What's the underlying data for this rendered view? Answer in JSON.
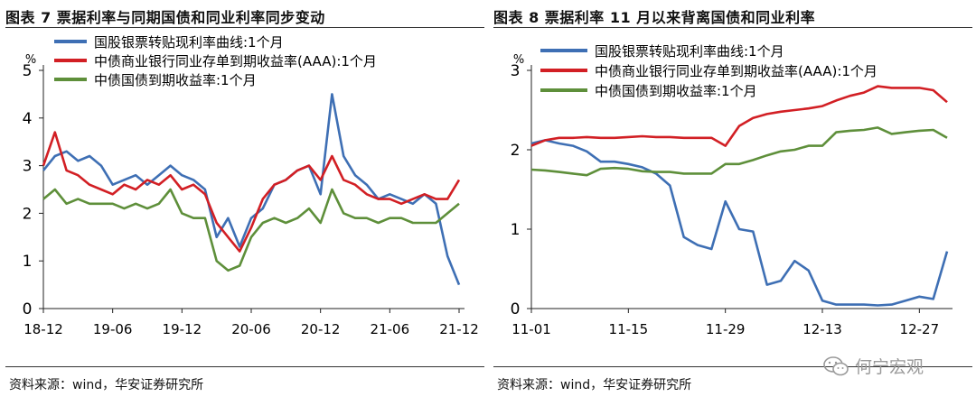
{
  "left": {
    "title": "图表 7  票据利率与同期国债和同业利率同步变动",
    "source": "资料来源：wind，华安证券研究所"
  },
  "right": {
    "title": "图表 8  票据利率 11 月以来背离国债和同业利率",
    "source": "资料来源：wind，华安证券研究所"
  },
  "watermark": {
    "text": "何宁宏观",
    "icon": "wechat-icon"
  },
  "chart_data": [
    {
      "type": "line",
      "title": "图表 7  票据利率与同期国债和同业利率同步变动",
      "ylabel": "%",
      "ylim": [
        0,
        5
      ],
      "yticks": [
        0,
        1,
        2,
        3,
        4,
        5
      ],
      "xticks": [
        "18-12",
        "19-06",
        "19-12",
        "20-06",
        "20-12",
        "21-06",
        "21-12"
      ],
      "x": [
        "18-12",
        "19-01",
        "19-02",
        "19-03",
        "19-04",
        "19-05",
        "19-06",
        "19-07",
        "19-08",
        "19-09",
        "19-10",
        "19-11",
        "19-12",
        "20-01",
        "20-02",
        "20-03",
        "20-04",
        "20-05",
        "20-06",
        "20-07",
        "20-08",
        "20-09",
        "20-10",
        "20-11",
        "20-12",
        "21-01",
        "21-02",
        "21-03",
        "21-04",
        "21-05",
        "21-06",
        "21-07",
        "21-08",
        "21-09",
        "21-10",
        "21-11",
        "21-12"
      ],
      "series": [
        {
          "name": "国股银票转贴现利率曲线:1个月",
          "color": "#3E6FB4",
          "values": [
            2.9,
            3.2,
            3.3,
            3.1,
            3.2,
            3.0,
            2.6,
            2.7,
            2.8,
            2.6,
            2.8,
            3.0,
            2.8,
            2.7,
            2.5,
            1.5,
            1.9,
            1.3,
            1.9,
            2.1,
            2.6,
            2.7,
            2.9,
            3.0,
            2.4,
            4.5,
            3.2,
            2.8,
            2.6,
            2.3,
            2.4,
            2.3,
            2.2,
            2.4,
            2.2,
            1.1,
            0.5
          ]
        },
        {
          "name": "中债商业银行同业存单到期收益率(AAA):1个月",
          "color": "#D21F24",
          "values": [
            3.0,
            3.7,
            2.9,
            2.8,
            2.6,
            2.5,
            2.4,
            2.6,
            2.5,
            2.7,
            2.6,
            2.8,
            2.5,
            2.6,
            2.4,
            1.8,
            1.5,
            1.2,
            1.7,
            2.3,
            2.6,
            2.7,
            2.9,
            3.0,
            2.7,
            3.2,
            2.7,
            2.6,
            2.4,
            2.3,
            2.3,
            2.2,
            2.3,
            2.4,
            2.3,
            2.3,
            2.7
          ]
        },
        {
          "name": "中债国债到期收益率:1个月",
          "color": "#5E8F3A",
          "values": [
            2.3,
            2.5,
            2.2,
            2.3,
            2.2,
            2.2,
            2.2,
            2.1,
            2.2,
            2.1,
            2.2,
            2.5,
            2.0,
            1.9,
            1.9,
            1.0,
            0.8,
            0.9,
            1.5,
            1.8,
            1.9,
            1.8,
            1.9,
            2.1,
            1.8,
            2.5,
            2.0,
            1.9,
            1.9,
            1.8,
            1.9,
            1.9,
            1.8,
            1.8,
            1.8,
            2.0,
            2.2
          ]
        }
      ]
    },
    {
      "type": "line",
      "title": "图表 8  票据利率 11 月以来背离国债和同业利率",
      "ylabel": "%",
      "ylim": [
        0,
        3
      ],
      "yticks": [
        0,
        1,
        2,
        3
      ],
      "xticks": [
        "11-01",
        "11-15",
        "11-29",
        "12-13",
        "12-27"
      ],
      "x": [
        "11-01",
        "11-03",
        "11-05",
        "11-07",
        "11-09",
        "11-11",
        "11-13",
        "11-15",
        "11-17",
        "11-19",
        "11-21",
        "11-23",
        "11-25",
        "11-27",
        "11-29",
        "12-01",
        "12-03",
        "12-05",
        "12-07",
        "12-09",
        "12-11",
        "12-13",
        "12-15",
        "12-17",
        "12-19",
        "12-21",
        "12-23",
        "12-25",
        "12-27",
        "12-29",
        "12-31"
      ],
      "series": [
        {
          "name": "国股银票转贴现利率曲线:1个月",
          "color": "#3E6FB4",
          "values": [
            2.08,
            2.12,
            2.08,
            2.05,
            1.98,
            1.85,
            1.85,
            1.82,
            1.78,
            1.7,
            1.55,
            0.9,
            0.8,
            0.75,
            1.35,
            1.0,
            0.97,
            0.3,
            0.35,
            0.6,
            0.48,
            0.1,
            0.05,
            0.05,
            0.05,
            0.04,
            0.05,
            0.1,
            0.15,
            0.12,
            0.72
          ]
        },
        {
          "name": "中债商业银行同业存单到期收益率(AAA):1个月",
          "color": "#D21F24",
          "values": [
            2.05,
            2.12,
            2.15,
            2.15,
            2.16,
            2.15,
            2.15,
            2.16,
            2.17,
            2.16,
            2.16,
            2.15,
            2.15,
            2.15,
            2.05,
            2.3,
            2.4,
            2.45,
            2.48,
            2.5,
            2.52,
            2.55,
            2.62,
            2.68,
            2.72,
            2.8,
            2.78,
            2.78,
            2.78,
            2.75,
            2.6
          ]
        },
        {
          "name": "中债国债到期收益率:1个月",
          "color": "#5E8F3A",
          "values": [
            1.75,
            1.74,
            1.72,
            1.7,
            1.68,
            1.76,
            1.77,
            1.76,
            1.73,
            1.72,
            1.72,
            1.7,
            1.7,
            1.7,
            1.82,
            1.82,
            1.87,
            1.93,
            1.98,
            2.0,
            2.05,
            2.05,
            2.22,
            2.24,
            2.25,
            2.28,
            2.2,
            2.22,
            2.24,
            2.25,
            2.15
          ]
        }
      ]
    }
  ]
}
